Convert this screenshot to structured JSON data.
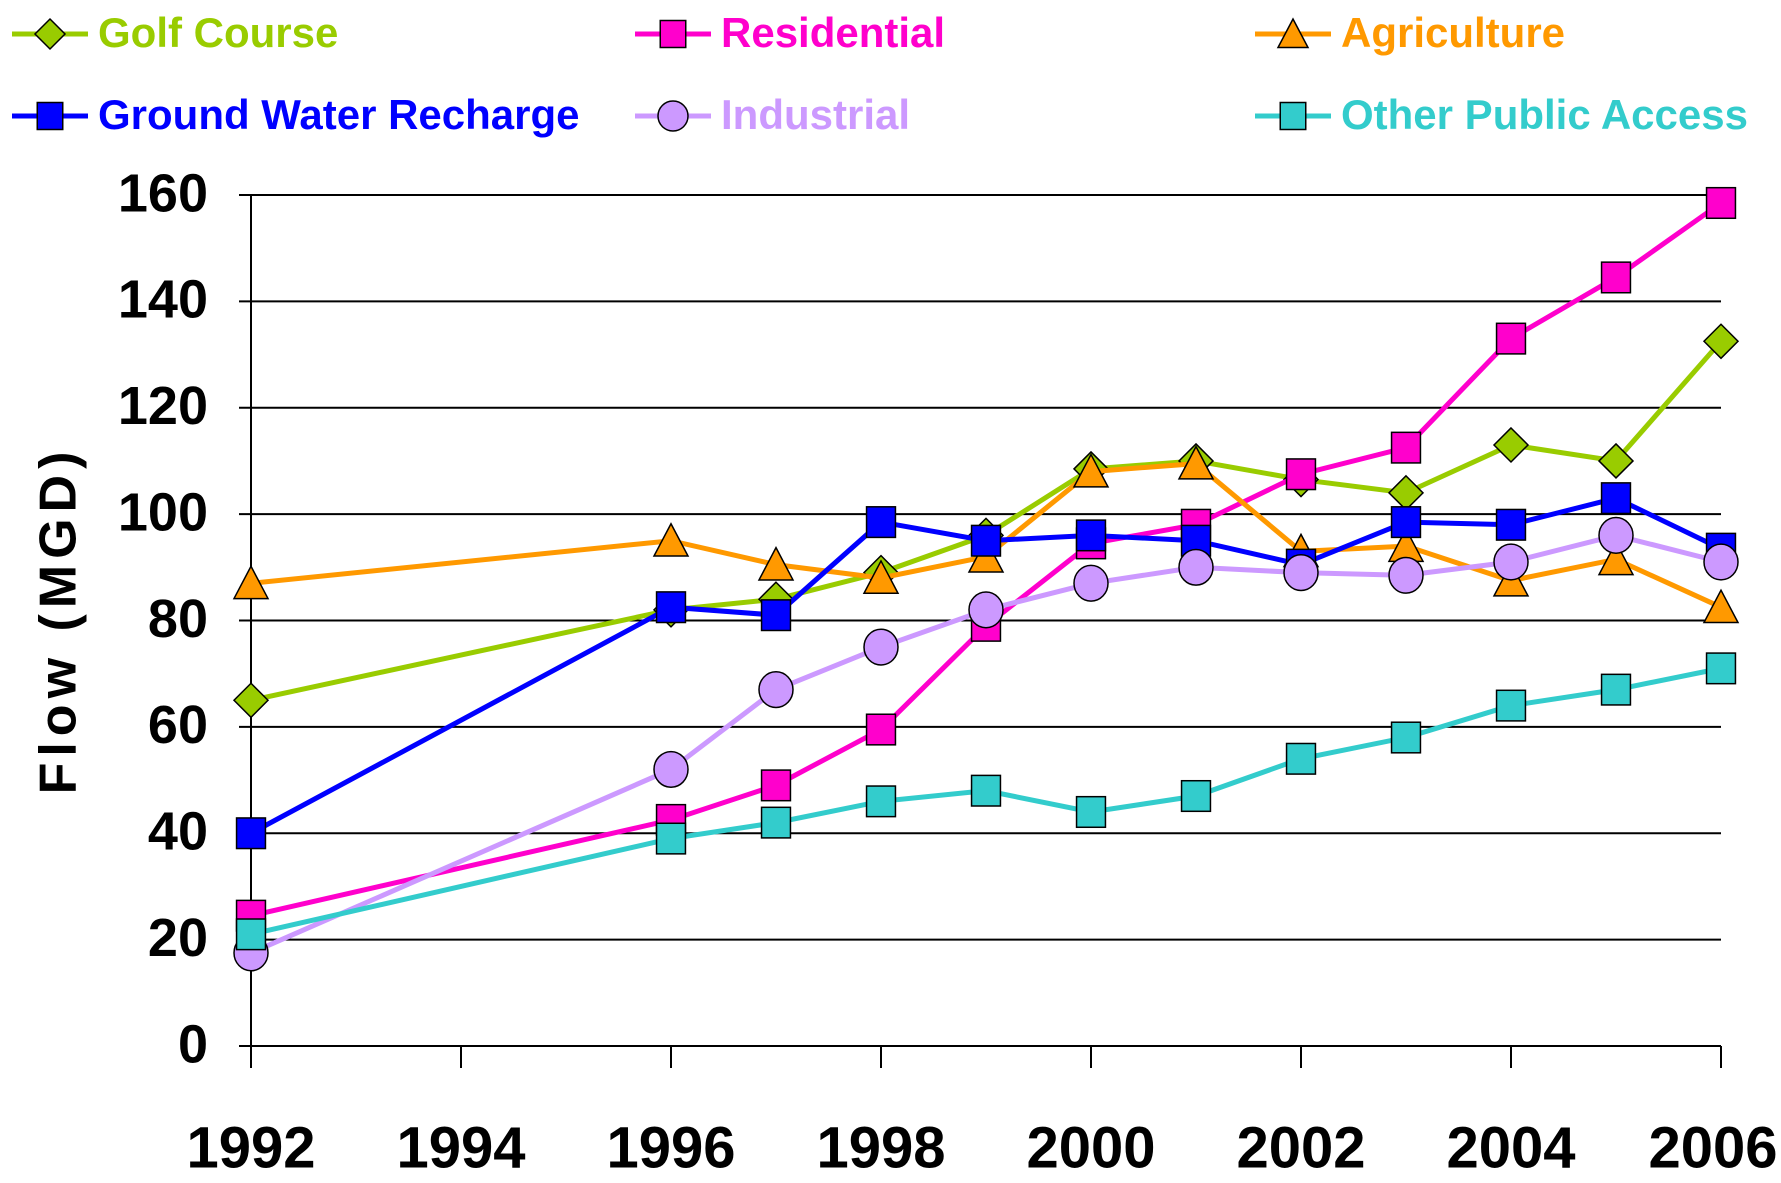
{
  "chart_data": {
    "type": "line",
    "y_label": "Flow (MGD)",
    "x": [
      1992,
      1996,
      1997,
      1998,
      1999,
      2000,
      2001,
      2002,
      2003,
      2004,
      2005,
      2006
    ],
    "xlim": [
      1992,
      2006
    ],
    "xticks": [
      1992,
      1994,
      1996,
      1998,
      2000,
      2002,
      2004,
      2006
    ],
    "ylim": [
      0,
      160
    ],
    "yticks": [
      0,
      20,
      40,
      60,
      80,
      100,
      120,
      140,
      160
    ],
    "grid": true,
    "legend": "top",
    "series": [
      {
        "name": "Golf Course",
        "color": "#99cc00",
        "marker": "diamond",
        "values": [
          65,
          82,
          84,
          89,
          96,
          108.5,
          110,
          106.5,
          104,
          113,
          110,
          132.5
        ]
      },
      {
        "name": "Residential",
        "color": "#ff00cc",
        "marker": "square",
        "values": [
          24.5,
          42.5,
          49,
          59.5,
          79,
          94.5,
          98,
          107.5,
          112.5,
          133,
          144.5,
          158.5
        ]
      },
      {
        "name": "Agriculture",
        "color": "#ff9900",
        "marker": "triangle",
        "values": [
          87,
          95,
          90.5,
          88,
          92,
          108,
          109.5,
          93,
          94,
          87.5,
          91.5,
          82.5
        ]
      },
      {
        "name": "Ground Water Recharge",
        "color": "#0000ff",
        "marker": "square",
        "values": [
          40,
          82.5,
          81,
          98.5,
          95,
          96,
          95,
          90.5,
          98.5,
          98,
          103,
          93.5
        ]
      },
      {
        "name": "Industrial",
        "color": "#cc99ff",
        "marker": "circle",
        "values": [
          17.5,
          52,
          67,
          75,
          82,
          87,
          90,
          89,
          88.5,
          91,
          96,
          91
        ]
      },
      {
        "name": "Other Public Access",
        "color": "#33cccc",
        "marker": "square",
        "values": [
          21,
          39,
          42,
          46,
          48,
          44,
          47,
          54,
          58,
          64,
          67,
          71
        ]
      }
    ]
  }
}
